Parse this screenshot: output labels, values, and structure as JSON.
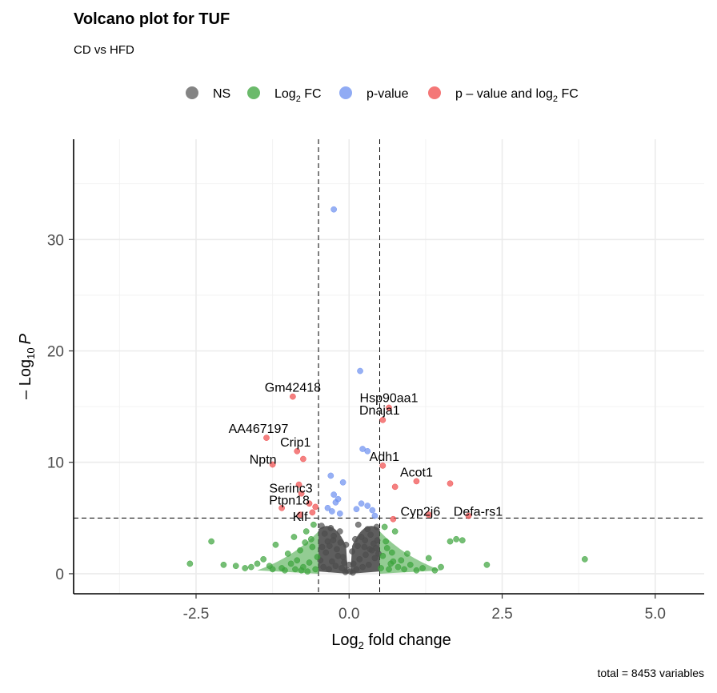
{
  "chart_data": {
    "type": "scatter",
    "title": "Volcano plot for TUF",
    "subtitle": "CD vs HFD",
    "xlabel": "Log2 fold change",
    "xlabel_base": "Log",
    "xlabel_sub": "2",
    "xlabel_rest": " fold change",
    "ylabel_prefix": "– Log",
    "ylabel_sub": "10",
    "ylabel_P": "P",
    "caption": "total = 8453 variables",
    "xlim": [
      -4.5,
      5.8
    ],
    "ylim": [
      -1.8,
      39
    ],
    "x_ticks": [
      -2.5,
      0.0,
      2.5,
      5.0
    ],
    "x_tick_labels": [
      "-2.5",
      "0.0",
      "2.5",
      "5.0"
    ],
    "y_ticks": [
      0,
      10,
      20,
      30
    ],
    "y_tick_labels": [
      "0",
      "10",
      "20",
      "30"
    ],
    "fc_cutoff": 0.5,
    "p_cutoff_neglog10": 5,
    "grid": true,
    "legend_position": "top",
    "legend": [
      {
        "key": "ns",
        "label": "NS",
        "color": "#5b5b5b"
      },
      {
        "key": "fc",
        "label_base": "Log",
        "label_sub": "2",
        "label_rest": " FC",
        "color": "#3aa33a"
      },
      {
        "key": "p",
        "label": "p-value",
        "color": "#6b8ff0"
      },
      {
        "key": "both",
        "label_base": "p – value and log",
        "label_sub": "2",
        "label_rest": " FC",
        "color": "#f04a4a"
      }
    ],
    "series": [
      {
        "name": "NS",
        "color": "#4d4d4d",
        "points": [
          [
            -0.45,
            4.3
          ],
          [
            -0.4,
            3.6
          ],
          [
            -0.35,
            2.9
          ],
          [
            -0.3,
            4.1
          ],
          [
            -0.25,
            3.4
          ],
          [
            -0.2,
            2.2
          ],
          [
            -0.15,
            3.8
          ],
          [
            -0.1,
            1.5
          ],
          [
            -0.05,
            2.6
          ],
          [
            0.0,
            0.8
          ],
          [
            0.05,
            2.0
          ],
          [
            0.1,
            3.1
          ],
          [
            0.15,
            4.4
          ],
          [
            0.2,
            3.3
          ],
          [
            0.25,
            2.4
          ],
          [
            0.3,
            4.0
          ],
          [
            0.35,
            3.5
          ],
          [
            0.4,
            2.7
          ],
          [
            0.45,
            4.2
          ],
          [
            0.48,
            1.8
          ],
          [
            -0.47,
            1.2
          ],
          [
            -0.42,
            0.6
          ],
          [
            -0.38,
            1.9
          ],
          [
            -0.33,
            0.4
          ],
          [
            -0.28,
            1.1
          ],
          [
            -0.22,
            0.7
          ],
          [
            -0.18,
            1.6
          ],
          [
            -0.12,
            0.5
          ],
          [
            -0.08,
            1.0
          ],
          [
            -0.03,
            0.3
          ],
          [
            0.02,
            0.2
          ],
          [
            0.07,
            0.9
          ],
          [
            0.12,
            0.4
          ],
          [
            0.17,
            1.3
          ],
          [
            0.22,
            0.6
          ],
          [
            0.27,
            1.7
          ],
          [
            0.32,
            0.8
          ],
          [
            0.37,
            2.1
          ],
          [
            0.42,
            1.4
          ],
          [
            0.46,
            3.0
          ],
          [
            -0.32,
            2.5
          ],
          [
            -0.26,
            3.0
          ],
          [
            -0.14,
            2.8
          ],
          [
            0.14,
            2.5
          ],
          [
            0.26,
            3.0
          ],
          [
            0.34,
            2.2
          ],
          [
            -0.44,
            2.4
          ],
          [
            0.44,
            2.3
          ],
          [
            -0.06,
            0.15
          ],
          [
            0.06,
            0.1
          ]
        ]
      },
      {
        "name": "Log2 FC",
        "color": "#3aa33a",
        "points": [
          [
            -2.6,
            0.9
          ],
          [
            -2.25,
            2.9
          ],
          [
            -2.05,
            0.8
          ],
          [
            -1.85,
            0.7
          ],
          [
            -1.7,
            0.5
          ],
          [
            -1.6,
            0.6
          ],
          [
            -1.5,
            0.9
          ],
          [
            -1.4,
            1.3
          ],
          [
            -1.3,
            0.7
          ],
          [
            -1.2,
            2.6
          ],
          [
            -1.1,
            0.5
          ],
          [
            -1.0,
            1.8
          ],
          [
            -0.95,
            0.9
          ],
          [
            -0.9,
            3.3
          ],
          [
            -0.85,
            1.2
          ],
          [
            -0.8,
            2.1
          ],
          [
            -0.75,
            0.6
          ],
          [
            -0.7,
            3.8
          ],
          [
            -0.65,
            1.0
          ],
          [
            -0.6,
            2.4
          ],
          [
            -0.55,
            0.4
          ],
          [
            -0.52,
            1.5
          ],
          [
            -0.68,
            0.2
          ],
          [
            -0.78,
            0.3
          ],
          [
            -0.88,
            0.4
          ],
          [
            -1.05,
            0.3
          ],
          [
            -1.25,
            0.4
          ],
          [
            -0.58,
            4.4
          ],
          [
            -0.62,
            3.1
          ],
          [
            -0.72,
            2.8
          ],
          [
            0.52,
            0.5
          ],
          [
            0.55,
            1.6
          ],
          [
            0.6,
            2.9
          ],
          [
            0.65,
            0.4
          ],
          [
            0.7,
            1.9
          ],
          [
            0.75,
            3.8
          ],
          [
            0.8,
            0.6
          ],
          [
            0.85,
            1.2
          ],
          [
            0.9,
            0.4
          ],
          [
            1.0,
            0.8
          ],
          [
            1.1,
            0.3
          ],
          [
            1.2,
            0.5
          ],
          [
            1.3,
            1.4
          ],
          [
            1.4,
            0.3
          ],
          [
            1.5,
            0.6
          ],
          [
            1.65,
            2.9
          ],
          [
            1.75,
            3.1
          ],
          [
            1.85,
            3.0
          ],
          [
            2.25,
            0.8
          ],
          [
            3.85,
            1.3
          ],
          [
            0.58,
            4.2
          ],
          [
            0.62,
            2.3
          ],
          [
            0.68,
            0.9
          ],
          [
            0.72,
            1.1
          ],
          [
            0.95,
            1.8
          ]
        ]
      },
      {
        "name": "p-value",
        "color": "#6b8ff0",
        "points": [
          [
            -0.25,
            32.7
          ],
          [
            0.18,
            18.2
          ],
          [
            0.22,
            11.2
          ],
          [
            0.3,
            11.0
          ],
          [
            -0.3,
            8.8
          ],
          [
            -0.1,
            8.2
          ],
          [
            -0.25,
            7.1
          ],
          [
            -0.18,
            6.7
          ],
          [
            -0.22,
            6.4
          ],
          [
            0.2,
            6.3
          ],
          [
            0.3,
            6.1
          ],
          [
            -0.35,
            5.9
          ],
          [
            -0.28,
            5.6
          ],
          [
            0.38,
            5.7
          ],
          [
            0.42,
            5.2
          ],
          [
            -0.15,
            5.4
          ],
          [
            0.12,
            5.8
          ]
        ]
      },
      {
        "name": "p – value and log2 FC",
        "color": "#f04a4a",
        "points": [
          [
            -0.92,
            15.9
          ],
          [
            0.55,
            13.8
          ],
          [
            0.65,
            14.9
          ],
          [
            -1.35,
            12.2
          ],
          [
            -0.85,
            11.0
          ],
          [
            -0.75,
            10.3
          ],
          [
            -1.25,
            9.8
          ],
          [
            0.55,
            9.7
          ],
          [
            0.75,
            7.8
          ],
          [
            1.1,
            8.3
          ],
          [
            1.65,
            8.1
          ],
          [
            -0.82,
            8.0
          ],
          [
            -0.78,
            7.2
          ],
          [
            -0.65,
            6.3
          ],
          [
            -0.55,
            6.0
          ],
          [
            -1.1,
            5.9
          ],
          [
            -0.8,
            5.3
          ],
          [
            0.72,
            4.9
          ],
          [
            1.3,
            5.3
          ],
          [
            1.95,
            5.2
          ],
          [
            -0.6,
            5.5
          ]
        ]
      }
    ],
    "annotations": [
      {
        "label": "Gm42418",
        "x": -0.92,
        "y": 15.9
      },
      {
        "label": "Hsp90aa1",
        "x": 0.65,
        "y": 14.9
      },
      {
        "label": "Dnaja1",
        "x": 0.55,
        "y": 13.8
      },
      {
        "label": "AA467197",
        "x": -1.35,
        "y": 12.2
      },
      {
        "label": "Crip1",
        "x": -0.85,
        "y": 11.0
      },
      {
        "label": "Nptn",
        "x": -1.25,
        "y": 9.8
      },
      {
        "label": "Adh1",
        "x": 0.55,
        "y": 9.7
      },
      {
        "label": "Acot1",
        "x": 1.1,
        "y": 8.3
      },
      {
        "label": "Serinc3",
        "x": -0.82,
        "y": 8.0
      },
      {
        "label": "Ptpn18",
        "x": -0.78,
        "y": 7.2
      },
      {
        "label": "Klf",
        "x": -0.8,
        "y": 5.3
      },
      {
        "label": "Cyp2j6",
        "x": 0.72,
        "y": 4.9
      },
      {
        "label": "Defa-rs1",
        "x": 1.95,
        "y": 5.2
      }
    ]
  }
}
